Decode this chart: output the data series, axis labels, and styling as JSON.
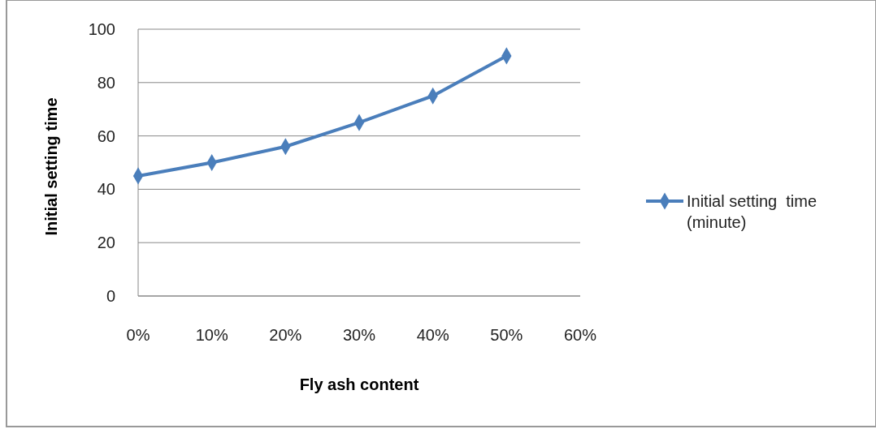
{
  "chart_data": {
    "type": "line",
    "xlabel": "Fly ash content",
    "ylabel": "Initial setting time",
    "x": [
      0,
      10,
      20,
      30,
      40,
      50
    ],
    "series": [
      {
        "name": "Initial setting  time (minute)",
        "color": "#4a7ebb",
        "values": [
          45,
          50,
          56,
          65,
          75,
          90
        ]
      }
    ],
    "xlim": [
      0,
      60
    ],
    "xticks": [
      {
        "value": 0,
        "label": "0%"
      },
      {
        "value": 10,
        "label": "10%"
      },
      {
        "value": 20,
        "label": "20%"
      },
      {
        "value": 30,
        "label": "30%"
      },
      {
        "value": 40,
        "label": "40%"
      },
      {
        "value": 50,
        "label": "50%"
      },
      {
        "value": 60,
        "label": "60%"
      }
    ],
    "ylim": [
      0,
      100
    ],
    "yticks": [
      0,
      20,
      40,
      60,
      80,
      100
    ],
    "grid": "y",
    "legend": "right",
    "marker": "diamond",
    "line_style": "solid"
  }
}
